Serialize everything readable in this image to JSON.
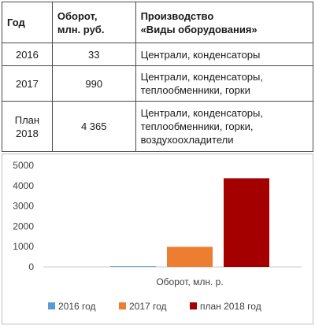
{
  "table": {
    "headers": [
      "Год",
      "Оборот, млн. руб.",
      "Производство «Виды оборудования»"
    ],
    "header_lines": {
      "col1": [
        "Год"
      ],
      "col2": [
        "Оборот,",
        "млн. руб."
      ],
      "col3": [
        "Производство",
        "«Виды оборудования»"
      ]
    },
    "rows": [
      {
        "year": [
          "2016"
        ],
        "turnover": "33",
        "products": [
          "Централи, конденсаторы"
        ]
      },
      {
        "year": [
          "2017"
        ],
        "turnover": "990",
        "products": [
          "Централи, конденсаторы,",
          "теплообменники, горки"
        ]
      },
      {
        "year": [
          "План",
          "2018"
        ],
        "turnover": "4 365",
        "products": [
          "Централи, конденсаторы,",
          "теплообменники, горки,",
          "воздухоохладители"
        ]
      }
    ]
  },
  "chart_data": {
    "type": "bar",
    "categories": [
      "Оборот, млн. р."
    ],
    "series": [
      {
        "name": "2016 год",
        "values": [
          33
        ],
        "color": "#5b9bd5"
      },
      {
        "name": "2017 год",
        "values": [
          990
        ],
        "color": "#ed7d31"
      },
      {
        "name": "план 2018 год",
        "values": [
          4365
        ],
        "color": "#a50000"
      }
    ],
    "ylim": [
      0,
      5000
    ],
    "yticks": [
      "0",
      "1000",
      "2000",
      "3000",
      "4000",
      "5000"
    ],
    "xlabel": "Оборот, млн. р.",
    "ylabel": "",
    "grid": false,
    "legend_position": "bottom"
  }
}
